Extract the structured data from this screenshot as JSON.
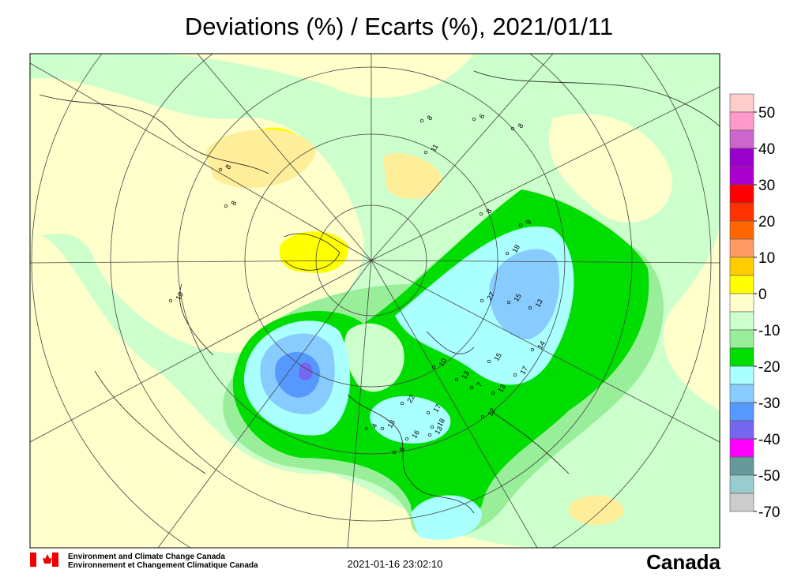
{
  "header": {
    "title": "Deviations (%) / Ecarts (%), 2021/01/11"
  },
  "map": {
    "station_labels": [
      8,
      6,
      8,
      11,
      8,
      8,
      8,
      9,
      18,
      15,
      13,
      27,
      10,
      14,
      15,
      17,
      13,
      7,
      13,
      10,
      22,
      17,
      18,
      13,
      13,
      4,
      16,
      6,
      12
    ]
  },
  "legend": {
    "labels": [
      50,
      40,
      30,
      20,
      10,
      0,
      -10,
      -20,
      -30,
      -40,
      -50,
      -70
    ],
    "colors": [
      "#ffcccc",
      "#ff99cc",
      "#cc66cc",
      "#9900cc",
      "#aa00cc",
      "#ff0000",
      "#ff3300",
      "#ff6600",
      "#ff9966",
      "#ffcc00",
      "#ffff00",
      "#ffffcc",
      "#ccffcc",
      "#99ee99",
      "#00dd00",
      "#aaffff",
      "#88ccff",
      "#5599ff",
      "#7766ee",
      "#ff00ff",
      "#669999",
      "#99cccc",
      "#cccccc"
    ]
  },
  "footer": {
    "agency_en": "Environment and Climate Change Canada",
    "agency_fr": "Environnement et Changement Climatique Canada",
    "timestamp": "2021-01-16 23:02:10",
    "wordmark": "Canada"
  }
}
